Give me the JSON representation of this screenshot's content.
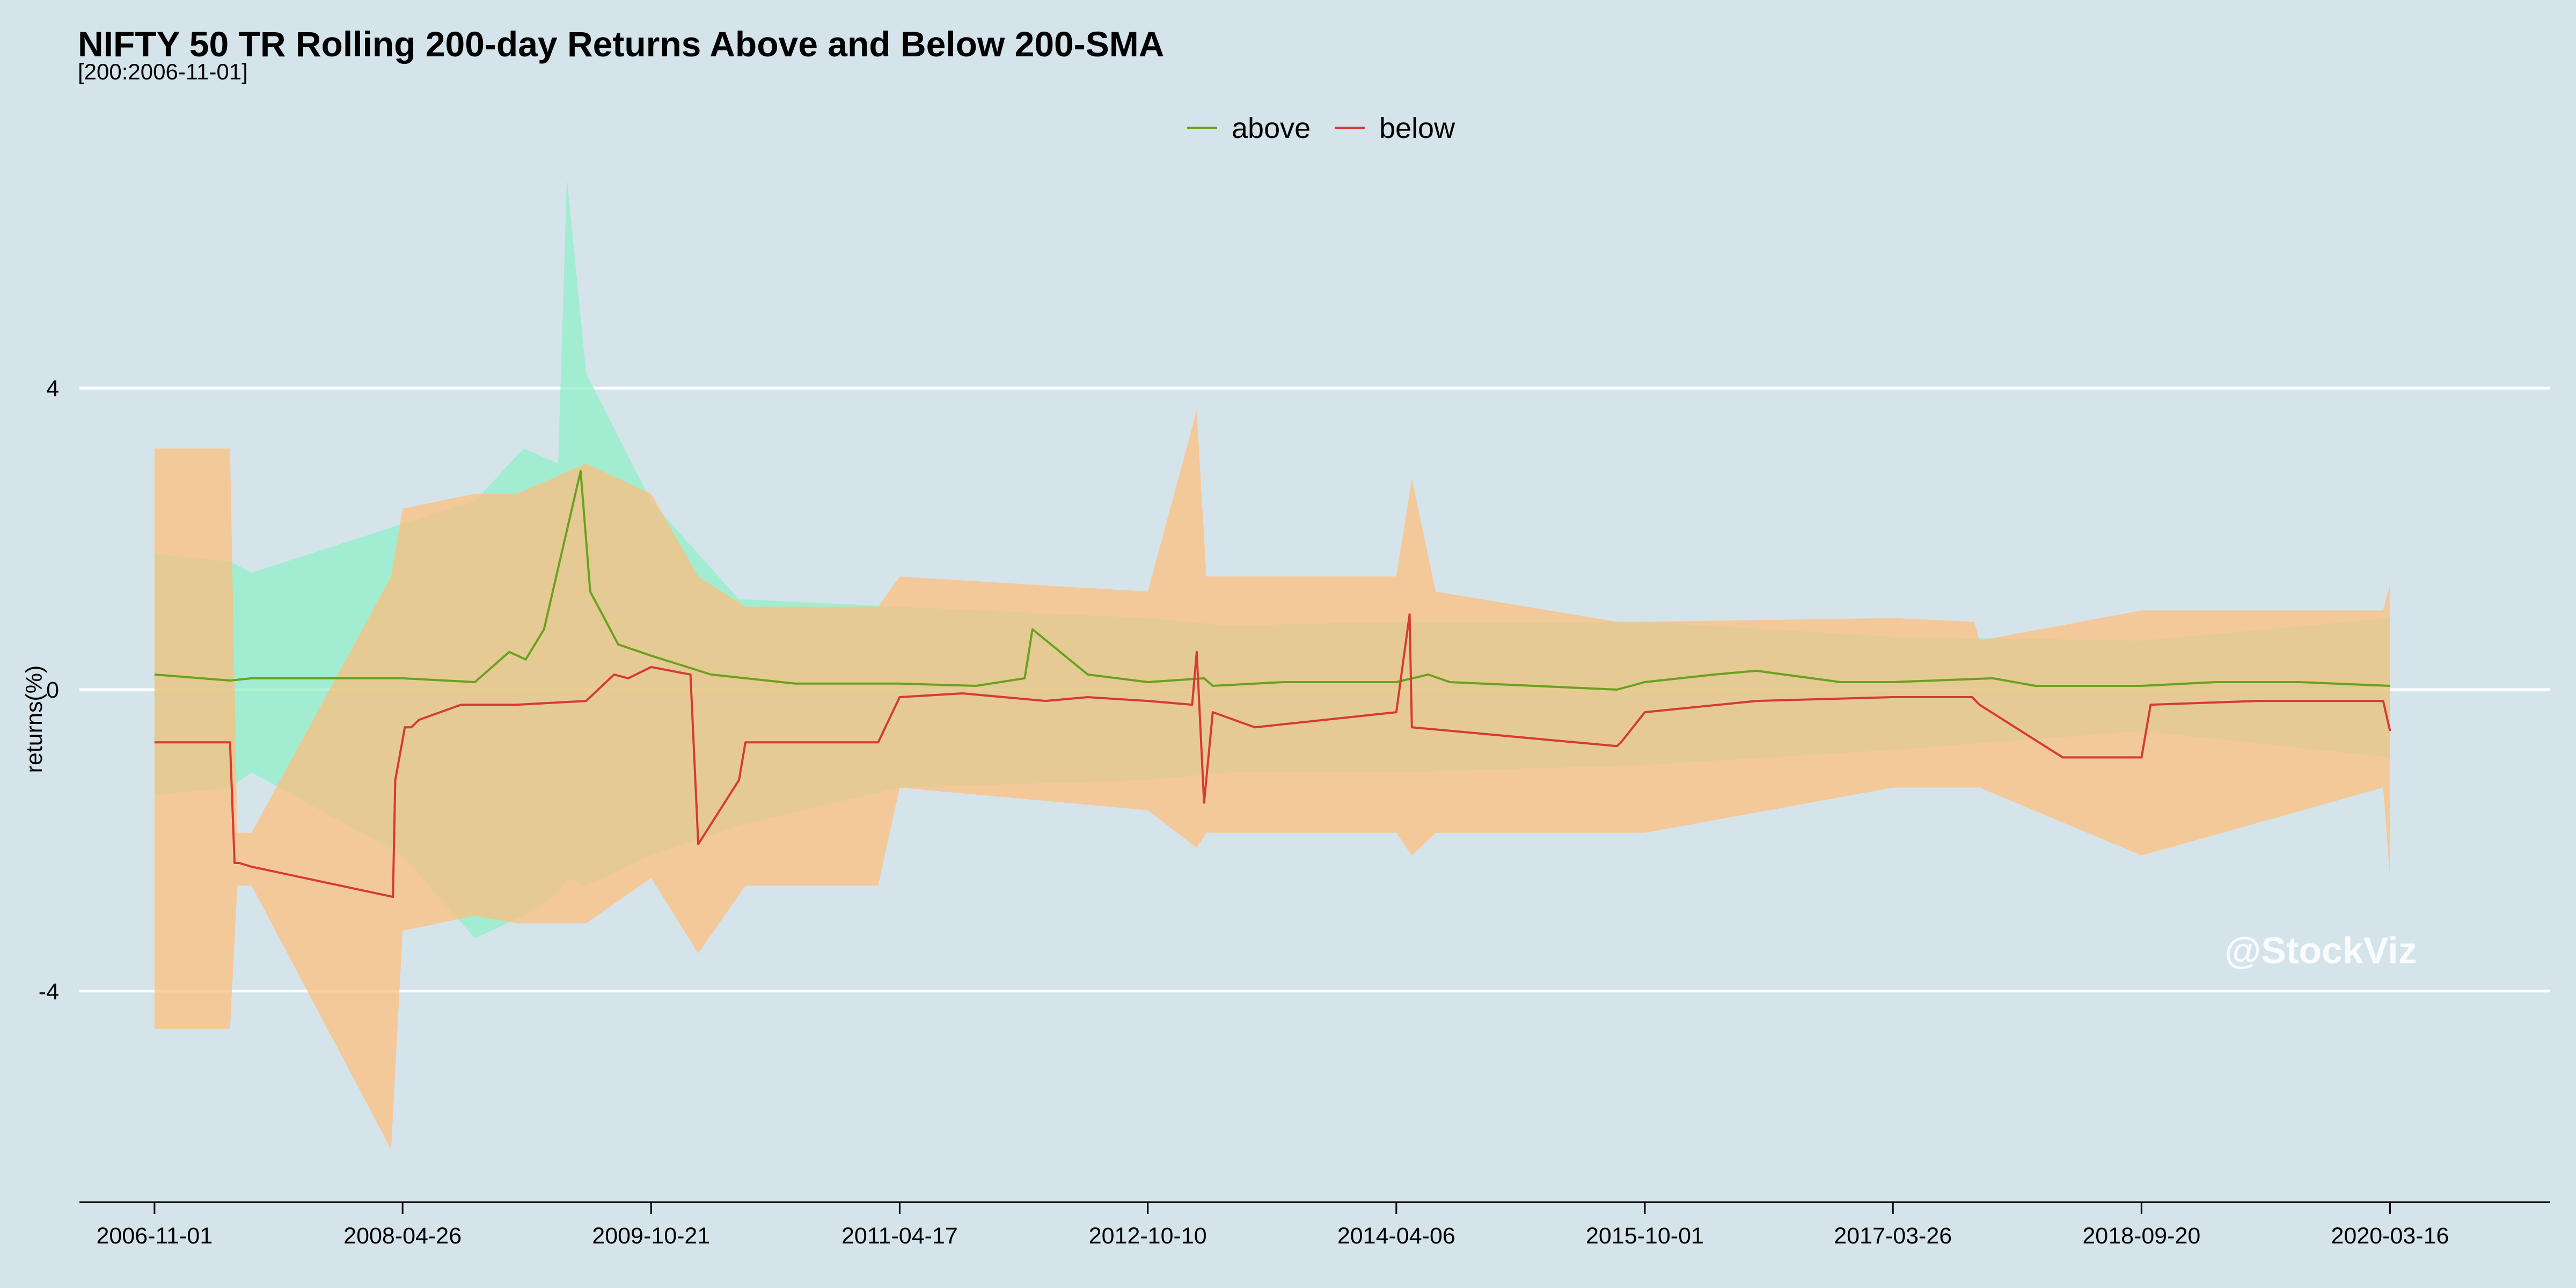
{
  "chart_data": {
    "type": "line",
    "title": "NIFTY 50 TR Rolling 200-day Returns Above and Below 200-SMA",
    "subtitle": "[200:2006-11-01]",
    "ylabel": "returns(%)",
    "xlabel": "",
    "ylim": [
      -6.8,
      6.8
    ],
    "xlim": [
      "2006-05-21",
      "2021-03-01"
    ],
    "y_ticks": [
      -4,
      0,
      4
    ],
    "x_ticks": [
      "2006-11-01",
      "2008-04-26",
      "2009-10-21",
      "2011-04-17",
      "2012-10-10",
      "2014-04-06",
      "2015-10-01",
      "2017-03-26",
      "2018-09-20",
      "2020-03-16"
    ],
    "grid": "horizontal",
    "legend": {
      "position": "top-center",
      "entries": [
        "above",
        "below"
      ]
    },
    "watermark": "@StockViz",
    "colors": {
      "background": "#d5e4eb",
      "gridline": "#ffffff",
      "above_line": "#6aa121",
      "below_line": "#d73a33",
      "above_band": "#8ff0c8",
      "below_band": "#ffbe7a"
    },
    "series": [
      {
        "name": "above",
        "x": [
          "2006-11-01",
          "2007-04-15",
          "2007-06-01",
          "2008-04-26",
          "2008-10-01",
          "2008-12-15",
          "2009-01-20",
          "2009-03-01",
          "2009-05-20",
          "2009-06-10",
          "2009-08-10",
          "2009-10-21",
          "2010-03-01",
          "2010-09-01",
          "2011-04-17",
          "2011-10-01",
          "2012-01-15",
          "2012-02-01",
          "2012-06-01",
          "2012-10-10",
          "2013-02-10",
          "2013-03-01",
          "2013-08-01",
          "2014-04-06",
          "2014-06-15",
          "2014-08-01",
          "2015-08-01",
          "2015-10-01",
          "2016-03-01",
          "2016-06-01",
          "2016-12-01",
          "2017-03-26",
          "2017-10-30",
          "2018-02-01",
          "2018-06-01",
          "2018-09-20",
          "2019-03-01",
          "2019-09-01",
          "2020-03-16"
        ],
        "y": [
          0.2,
          0.12,
          0.15,
          0.15,
          0.1,
          0.5,
          0.4,
          0.8,
          2.9,
          1.3,
          0.6,
          0.45,
          0.2,
          0.08,
          0.08,
          0.05,
          0.15,
          0.8,
          0.2,
          0.1,
          0.15,
          0.05,
          0.1,
          0.1,
          0.2,
          0.1,
          0.0,
          0.1,
          0.2,
          0.25,
          0.1,
          0.1,
          0.15,
          0.05,
          0.05,
          0.05,
          0.1,
          0.1,
          0.05
        ]
      },
      {
        "name": "below",
        "x": [
          "2006-11-01",
          "2007-04-15",
          "2007-04-25",
          "2007-05-05",
          "2007-06-01",
          "2008-04-05",
          "2008-04-10",
          "2008-05-01",
          "2008-05-15",
          "2008-06-01",
          "2008-09-01",
          "2009-01-01",
          "2009-06-01",
          "2009-08-01",
          "2009-09-01",
          "2009-10-21",
          "2010-01-15",
          "2010-02-01",
          "2010-05-01",
          "2010-05-15",
          "2011-03-01",
          "2011-04-17",
          "2011-09-01",
          "2012-03-01",
          "2012-06-01",
          "2012-10-10",
          "2013-01-15",
          "2013-01-25",
          "2013-02-10",
          "2013-03-01",
          "2013-06-01",
          "2014-04-06",
          "2014-05-05",
          "2014-05-10",
          "2015-08-01",
          "2015-08-10",
          "2015-10-01",
          "2016-06-01",
          "2017-03-26",
          "2017-09-15",
          "2017-10-01",
          "2018-04-01",
          "2018-09-20",
          "2018-10-10",
          "2019-06-01",
          "2020-03-01",
          "2020-03-16"
        ],
        "y": [
          -0.7,
          -0.7,
          -2.3,
          -2.3,
          -2.35,
          -2.75,
          -1.2,
          -0.5,
          -0.5,
          -0.4,
          -0.2,
          -0.2,
          -0.15,
          0.2,
          0.15,
          0.3,
          0.2,
          -2.05,
          -1.2,
          -0.7,
          -0.7,
          -0.1,
          -0.05,
          -0.15,
          -0.1,
          -0.15,
          -0.2,
          0.5,
          -1.5,
          -0.3,
          -0.5,
          -0.3,
          1.0,
          -0.5,
          -0.75,
          -0.7,
          -0.3,
          -0.15,
          -0.1,
          -0.1,
          -0.2,
          -0.9,
          -0.9,
          -0.2,
          -0.15,
          -0.15,
          -0.55
        ]
      }
    ],
    "bands": [
      {
        "name": "above",
        "x": [
          "2006-11-01",
          "2007-04-15",
          "2007-06-01",
          "2008-04-26",
          "2008-10-01",
          "2009-01-15",
          "2009-04-01",
          "2009-04-20",
          "2009-06-01",
          "2009-10-21",
          "2010-05-01",
          "2011-04-17",
          "2012-10-10",
          "2013-04-01",
          "2014-04-06",
          "2015-10-01",
          "2017-03-26",
          "2018-09-20",
          "2020-03-16"
        ],
        "upper": [
          1.8,
          1.7,
          1.55,
          2.2,
          2.5,
          3.2,
          3.0,
          6.8,
          4.2,
          2.5,
          1.2,
          1.1,
          0.95,
          0.85,
          0.9,
          0.9,
          0.7,
          0.65,
          0.95
        ],
        "lower": [
          -1.4,
          -1.3,
          -1.1,
          -2.2,
          -3.3,
          -3.0,
          -2.7,
          -2.5,
          -2.6,
          -2.2,
          -1.8,
          -1.3,
          -1.2,
          -1.1,
          -1.1,
          -1.0,
          -0.8,
          -0.55,
          -0.9
        ]
      },
      {
        "name": "below",
        "x": [
          "2006-11-01",
          "2007-04-15",
          "2007-05-01",
          "2007-06-01",
          "2008-04-01",
          "2008-04-26",
          "2008-10-01",
          "2009-01-01",
          "2009-06-01",
          "2009-10-21",
          "2010-02-01",
          "2010-05-15",
          "2011-03-01",
          "2011-04-17",
          "2012-10-10",
          "2013-01-25",
          "2013-02-15",
          "2014-04-06",
          "2014-05-10",
          "2014-07-01",
          "2015-08-01",
          "2015-10-01",
          "2017-03-26",
          "2017-09-20",
          "2017-10-01",
          "2018-09-20",
          "2020-03-01",
          "2020-03-16"
        ],
        "upper": [
          3.2,
          3.2,
          -1.9,
          -1.9,
          1.5,
          2.4,
          2.6,
          2.6,
          3.0,
          2.6,
          1.5,
          1.1,
          1.1,
          1.5,
          1.3,
          3.7,
          1.5,
          1.5,
          2.8,
          1.3,
          0.9,
          0.9,
          0.95,
          0.9,
          0.65,
          1.05,
          1.05,
          1.4
        ],
        "lower": [
          -4.5,
          -4.5,
          -2.6,
          -2.6,
          -6.1,
          -3.2,
          -3.0,
          -3.1,
          -3.1,
          -2.5,
          -3.5,
          -2.6,
          -2.6,
          -1.3,
          -1.6,
          -2.1,
          -1.9,
          -1.9,
          -2.2,
          -1.9,
          -1.9,
          -1.9,
          -1.3,
          -1.3,
          -1.3,
          -2.2,
          -1.3,
          -2.5
        ]
      }
    ]
  }
}
